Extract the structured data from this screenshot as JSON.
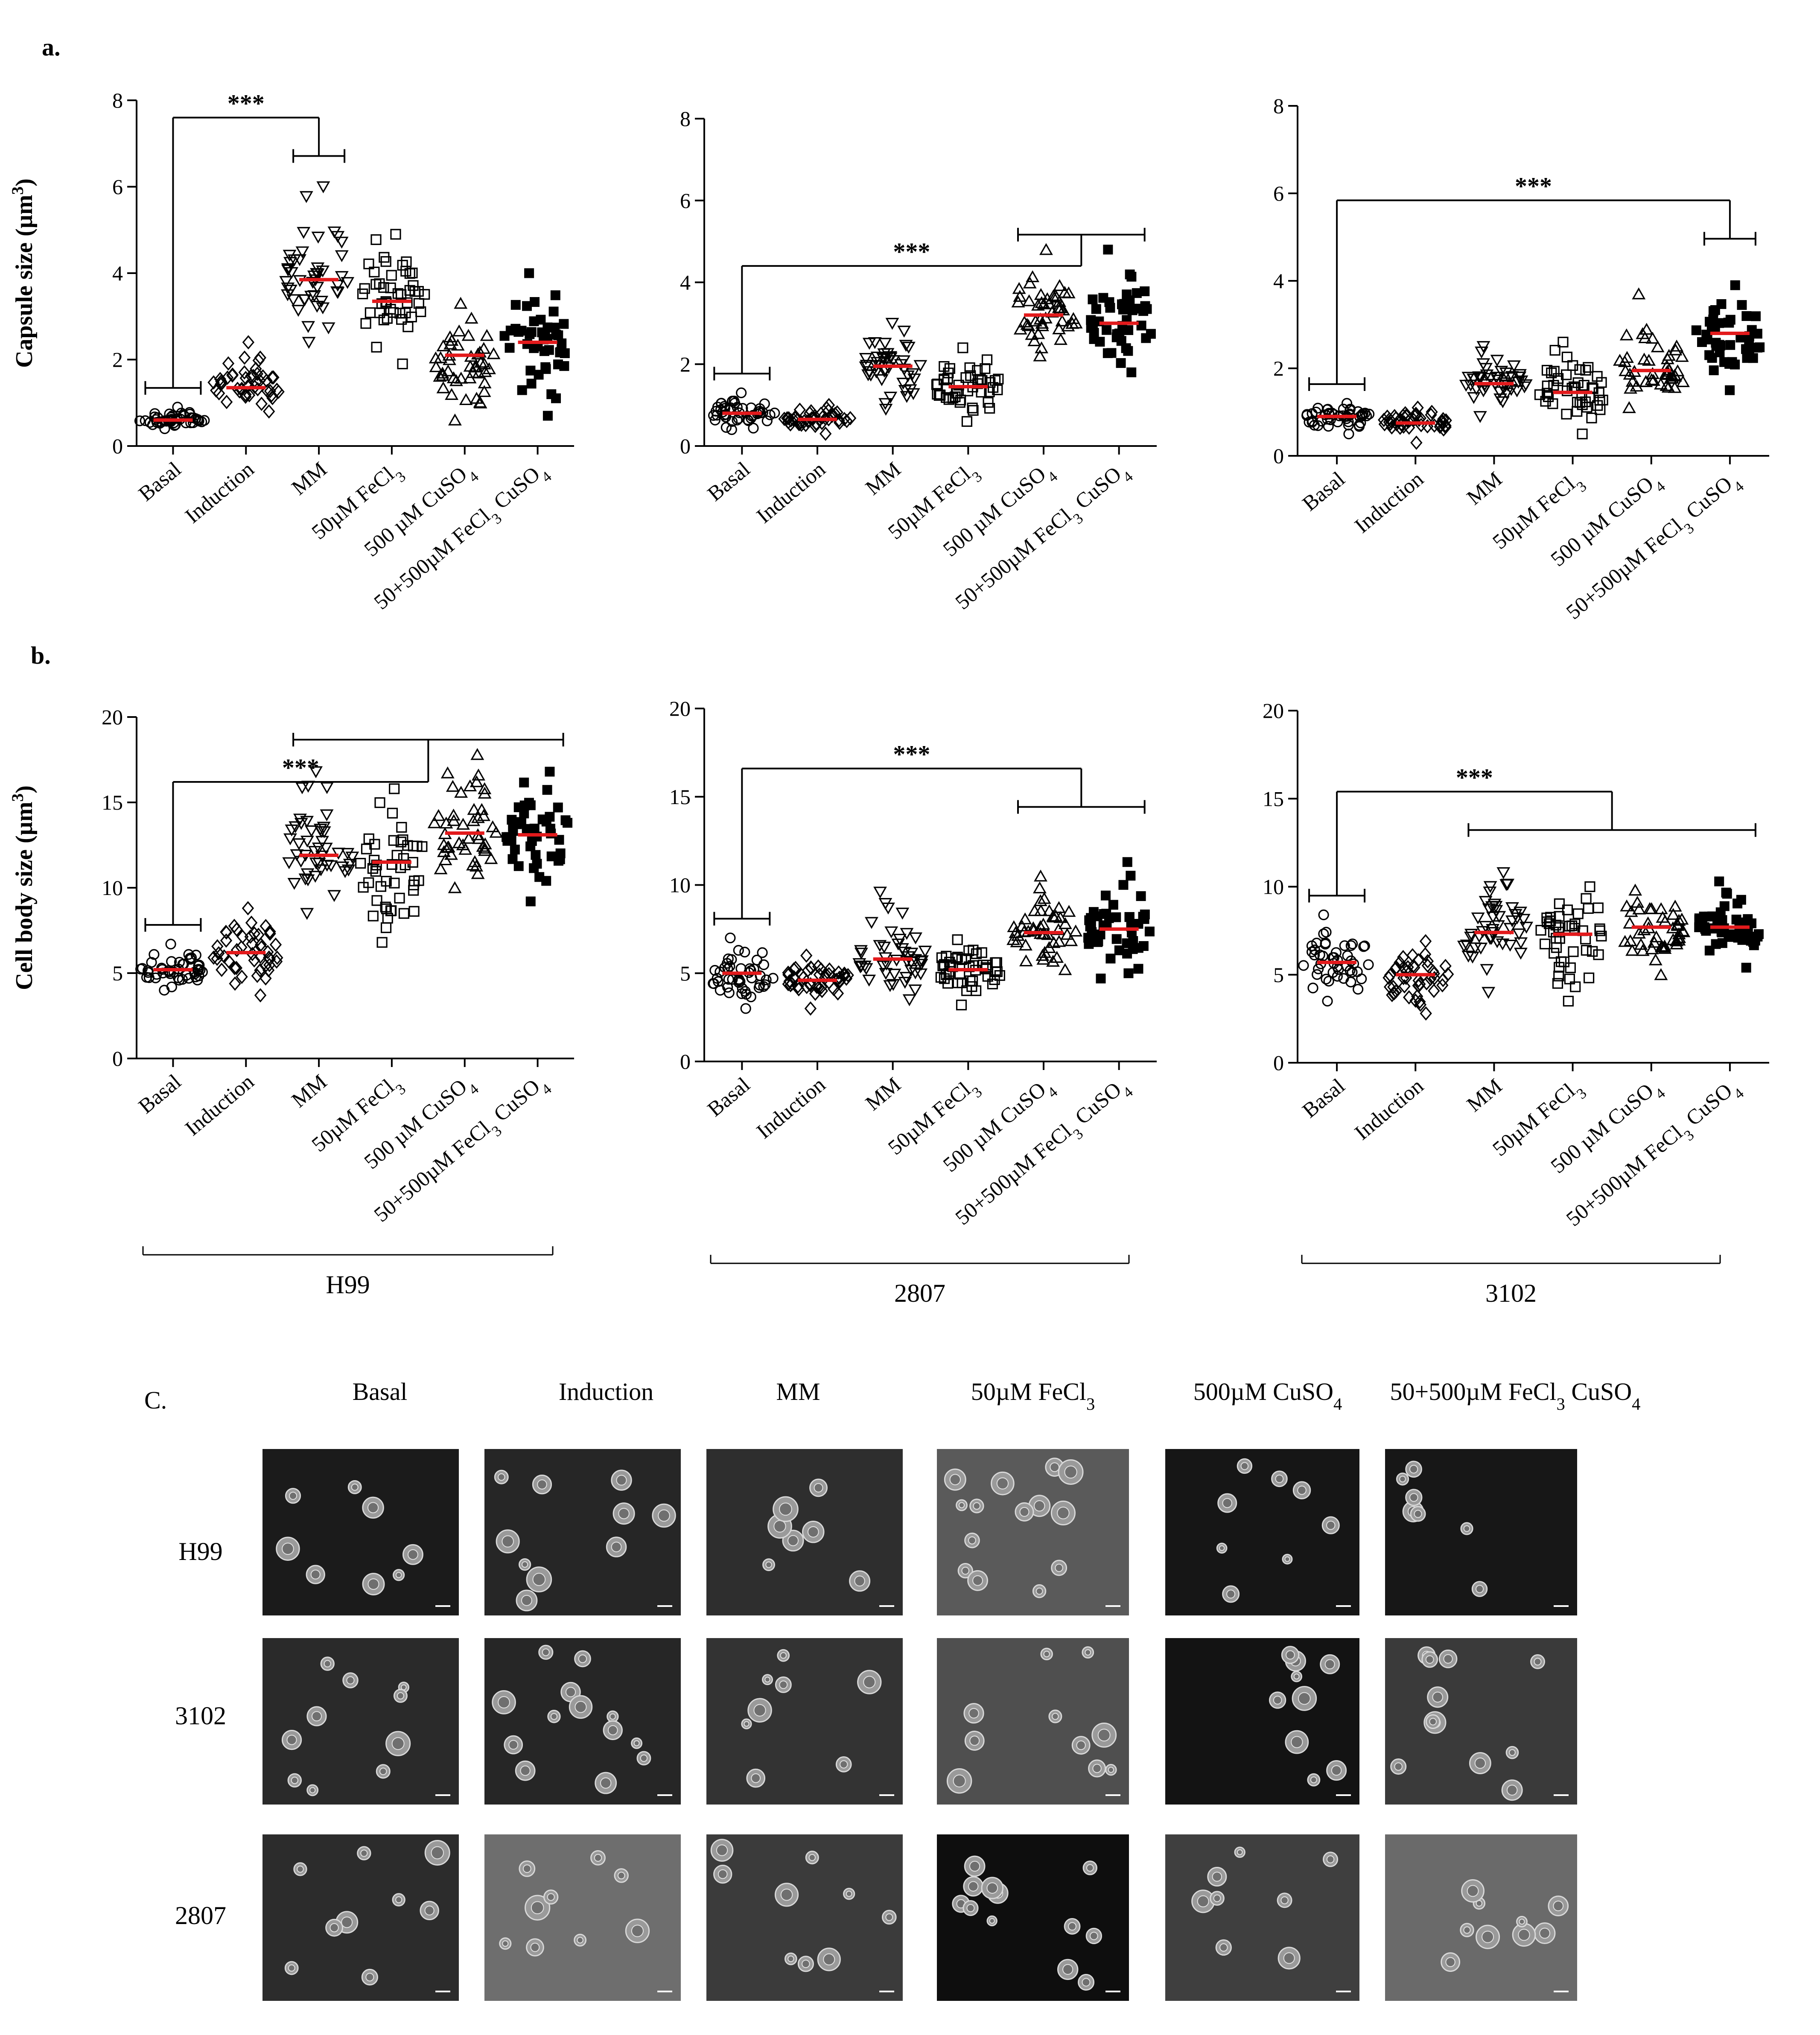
{
  "panel_labels": {
    "a": "a.",
    "b": "b.",
    "c": "C."
  },
  "significance": "***",
  "strains": [
    "H99",
    "2807",
    "3102"
  ],
  "conditions": [
    "Basal",
    "Induction",
    "MM",
    "50µM FeCl₃",
    "500 µM CuSO₄",
    "50+500µM FeCl₃ CuSO₄"
  ],
  "marker_shapes": [
    "circle",
    "diamond",
    "triangle-down",
    "square",
    "triangle-up",
    "square-filled"
  ],
  "colors": {
    "mean_line": "#e31a1c",
    "points": "#000000",
    "axes": "#000000"
  },
  "microscopy": {
    "column_headers": [
      "Basal",
      "Induction",
      "MM",
      "50µM FeCl₃",
      "500µM CuSO₄",
      "50+500µM FeCl₃ CuSO₄"
    ],
    "row_labels": [
      "H99",
      "3102",
      "2807"
    ]
  },
  "chart_data": [
    {
      "type": "scatter",
      "panel": "a",
      "strain": "H99",
      "ylabel": "Capsule size (µm³)",
      "ylim": [
        0,
        8
      ],
      "yticks": [
        0,
        2,
        4,
        6,
        8
      ],
      "categories": [
        "Basal",
        "Induction",
        "MM",
        "50µM FeCl₃",
        "500 µM CuSO₄",
        "50+500µM FeCl₃ CuSO₄"
      ],
      "means": [
        0.6,
        1.35,
        3.85,
        3.35,
        2.1,
        2.4
      ],
      "ranges": [
        [
          0.4,
          0.9
        ],
        [
          0.8,
          2.4
        ],
        [
          2.4,
          6.0
        ],
        [
          1.9,
          4.9
        ],
        [
          0.6,
          3.3
        ],
        [
          0.7,
          4.0
        ]
      ],
      "significance": {
        "label": "***",
        "from": [
          0
        ],
        "to": [
          2
        ]
      }
    },
    {
      "type": "scatter",
      "panel": "a",
      "strain": "2807",
      "ylabel": "",
      "ylim": [
        0,
        8
      ],
      "yticks": [
        0,
        2,
        4,
        6,
        8
      ],
      "categories": [
        "Basal",
        "Induction",
        "MM",
        "50µM FeCl₃",
        "500 µM CuSO₄",
        "50+500µM FeCl₃ CuSO₄"
      ],
      "means": [
        0.8,
        0.65,
        1.95,
        1.45,
        3.2,
        3.0
      ],
      "ranges": [
        [
          0.4,
          1.3
        ],
        [
          0.3,
          1.0
        ],
        [
          0.9,
          3.0
        ],
        [
          0.6,
          2.4
        ],
        [
          2.2,
          4.8
        ],
        [
          1.8,
          4.8
        ]
      ],
      "significance": {
        "label": "***",
        "from": [
          0
        ],
        "to": [
          4,
          5
        ]
      }
    },
    {
      "type": "scatter",
      "panel": "a",
      "strain": "3102",
      "ylabel": "",
      "ylim": [
        0,
        8
      ],
      "yticks": [
        0,
        2,
        4,
        6,
        8
      ],
      "categories": [
        "Basal",
        "Induction",
        "MM",
        "50µM FeCl₃",
        "500 µM CuSO₄",
        "50+500µM FeCl₃ CuSO₄"
      ],
      "means": [
        0.9,
        0.75,
        1.65,
        1.45,
        1.95,
        2.8
      ],
      "ranges": [
        [
          0.5,
          1.2
        ],
        [
          0.3,
          1.1
        ],
        [
          0.9,
          2.5
        ],
        [
          0.5,
          2.6
        ],
        [
          1.1,
          3.7
        ],
        [
          1.5,
          3.9
        ]
      ],
      "significance": {
        "label": "***",
        "from": [
          0
        ],
        "to": [
          5
        ]
      }
    },
    {
      "type": "scatter",
      "panel": "b",
      "strain": "H99",
      "ylabel": "Cell body size (µm³)",
      "ylim": [
        0,
        20
      ],
      "yticks": [
        0,
        5,
        10,
        15,
        20
      ],
      "categories": [
        "Basal",
        "Induction",
        "MM",
        "50µM FeCl₃",
        "500 µM CuSO₄",
        "50+500µM FeCl₃ CuSO₄"
      ],
      "means": [
        5.2,
        6.2,
        11.9,
        11.5,
        13.2,
        13.1
      ],
      "ranges": [
        [
          4.0,
          6.7
        ],
        [
          3.7,
          8.8
        ],
        [
          8.5,
          16.8
        ],
        [
          6.8,
          15.8
        ],
        [
          10.0,
          17.8
        ],
        [
          9.2,
          16.8
        ]
      ],
      "significance": {
        "label": "***",
        "from": [
          0
        ],
        "to": [
          2,
          3,
          4,
          5
        ]
      }
    },
    {
      "type": "scatter",
      "panel": "b",
      "strain": "2807",
      "ylabel": "",
      "ylim": [
        0,
        20
      ],
      "yticks": [
        0,
        5,
        10,
        15,
        20
      ],
      "categories": [
        "Basal",
        "Induction",
        "MM",
        "50µM FeCl₃",
        "500 µM CuSO₄",
        "50+500µM FeCl₃ CuSO₄"
      ],
      "means": [
        5.0,
        4.6,
        5.8,
        5.2,
        7.3,
        7.5
      ],
      "ranges": [
        [
          3.0,
          7.0
        ],
        [
          3.0,
          6.0
        ],
        [
          3.5,
          9.6
        ],
        [
          3.2,
          6.9
        ],
        [
          5.2,
          10.5
        ],
        [
          4.7,
          11.3
        ]
      ],
      "significance": {
        "label": "***",
        "from": [
          0
        ],
        "to": [
          4,
          5
        ]
      }
    },
    {
      "type": "scatter",
      "panel": "b",
      "strain": "3102",
      "ylabel": "",
      "ylim": [
        0,
        20
      ],
      "yticks": [
        0,
        5,
        10,
        15,
        20
      ],
      "categories": [
        "Basal",
        "Induction",
        "MM",
        "50µM FeCl₃",
        "500 µM CuSO₄",
        "50+500µM FeCl₃ CuSO₄"
      ],
      "means": [
        5.7,
        5.0,
        7.4,
        7.3,
        7.7,
        7.7
      ],
      "ranges": [
        [
          3.5,
          8.4
        ],
        [
          2.8,
          6.9
        ],
        [
          4.0,
          10.8
        ],
        [
          3.5,
          10.0
        ],
        [
          5.0,
          9.8
        ],
        [
          5.4,
          10.3
        ]
      ],
      "significance": {
        "label": "***",
        "from": [
          0
        ],
        "to": [
          2,
          3,
          4,
          5
        ]
      }
    }
  ]
}
